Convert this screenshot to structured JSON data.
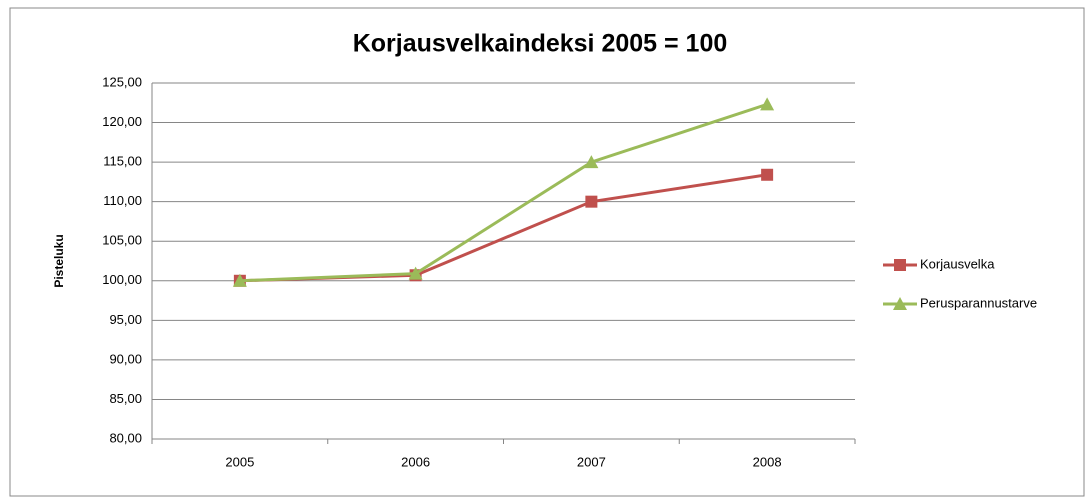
{
  "chart_data": {
    "type": "line",
    "title": "Korjausvelkaindeksi 2005 = 100",
    "y_label": "Pisteluku",
    "categories": [
      "2005",
      "2006",
      "2007",
      "2008"
    ],
    "series": [
      {
        "name": "Korjausvelka",
        "color": "#c0504d",
        "marker": "square",
        "values": [
          100,
          100.7,
          110,
          113.4
        ]
      },
      {
        "name": "Perusparannustarve",
        "color": "#9bbb59",
        "marker": "triangle",
        "values": [
          100,
          100.9,
          115,
          122.3
        ]
      }
    ],
    "ylim": [
      80,
      125
    ],
    "yticks": [
      {
        "value": 80,
        "label": "80,00"
      },
      {
        "value": 85,
        "label": "85,00"
      },
      {
        "value": 90,
        "label": "90,00"
      },
      {
        "value": 95,
        "label": "95,00"
      },
      {
        "value": 100,
        "label": "100,00"
      },
      {
        "value": 105,
        "label": "105,00"
      },
      {
        "value": 110,
        "label": "110,00"
      },
      {
        "value": 115,
        "label": "115,00"
      },
      {
        "value": 120,
        "label": "120,00"
      },
      {
        "value": 125,
        "label": "125,00"
      }
    ],
    "grid": true,
    "legend": "right"
  }
}
